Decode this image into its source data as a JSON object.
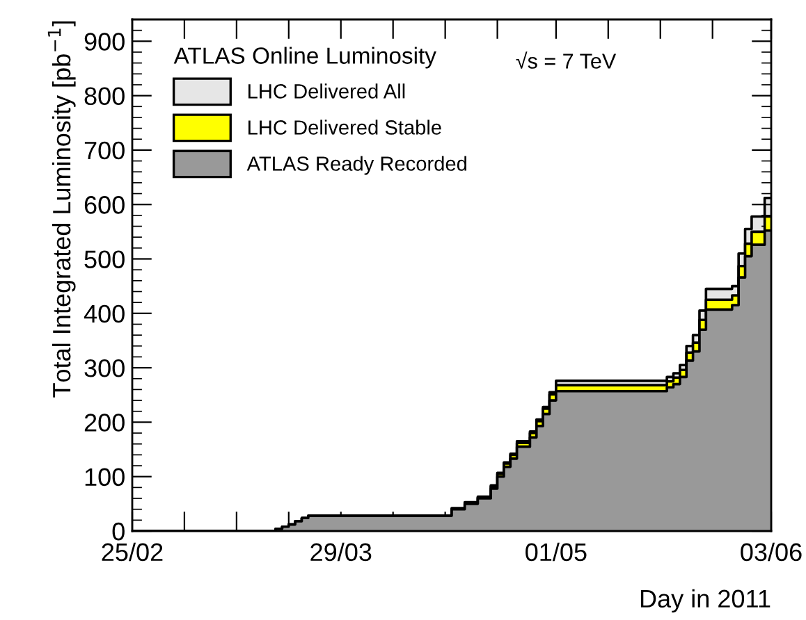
{
  "chart_data": {
    "type": "area",
    "xlabel": "Day in 2011",
    "ylabel": "Total Integrated Luminosity [pb$^{−1}$]",
    "legend_title": "ATLAS Online Luminosity",
    "annotations": [
      "√s = 7 TeV"
    ],
    "x": [
      "2011-02-25",
      "2011-03-18",
      "2011-03-19",
      "2011-03-19",
      "2011-03-20",
      "2011-03-20",
      "2011-03-21",
      "2011-03-21",
      "2011-03-22",
      "2011-03-22",
      "2011-03-23",
      "2011-03-23",
      "2011-03-24",
      "2011-03-24",
      "2011-04-15",
      "2011-04-15",
      "2011-04-17",
      "2011-04-17",
      "2011-04-19",
      "2011-04-19",
      "2011-04-21",
      "2011-04-21",
      "2011-04-22",
      "2011-04-22",
      "2011-04-23",
      "2011-04-23",
      "2011-04-24",
      "2011-04-24",
      "2011-04-25",
      "2011-04-25",
      "2011-04-27",
      "2011-04-27",
      "2011-04-28",
      "2011-04-28",
      "2011-04-29",
      "2011-04-29",
      "2011-04-30",
      "2011-04-30",
      "2011-05-01",
      "2011-05-01",
      "2011-05-18",
      "2011-05-18",
      "2011-05-19",
      "2011-05-19",
      "2011-05-20",
      "2011-05-20",
      "2011-05-21",
      "2011-05-21",
      "2011-05-22",
      "2011-05-22",
      "2011-05-23",
      "2011-05-23",
      "2011-05-24",
      "2011-05-24",
      "2011-05-28",
      "2011-05-28",
      "2011-05-29",
      "2011-05-29",
      "2011-05-30",
      "2011-05-30",
      "2011-05-31",
      "2011-05-31",
      "2011-06-02",
      "2011-06-02",
      "2011-06-03"
    ],
    "series": [
      {
        "name": "LHC Delivered All",
        "color": "#e6e6e6",
        "values": [
          0,
          0,
          0,
          4,
          4,
          8,
          8,
          12,
          12,
          18,
          18,
          24,
          24,
          28,
          28,
          42,
          42,
          53,
          53,
          63,
          63,
          84,
          84,
          107,
          107,
          126,
          126,
          142,
          142,
          165,
          165,
          183,
          183,
          205,
          205,
          228,
          228,
          255,
          255,
          276,
          276,
          283,
          283,
          290,
          290,
          305,
          305,
          340,
          340,
          360,
          360,
          405,
          405,
          445,
          445,
          450,
          450,
          510,
          510,
          555,
          555,
          578,
          578,
          612,
          612
        ]
      },
      {
        "name": "LHC Delivered Stable",
        "color": "#ffff00",
        "values": [
          0,
          0,
          0,
          4,
          4,
          8,
          8,
          12,
          12,
          18,
          18,
          24,
          24,
          28,
          28,
          41,
          41,
          52,
          52,
          62,
          62,
          82,
          82,
          105,
          105,
          124,
          124,
          140,
          140,
          162,
          162,
          180,
          180,
          202,
          202,
          225,
          225,
          251,
          251,
          268,
          268,
          275,
          275,
          282,
          282,
          296,
          296,
          328,
          328,
          346,
          346,
          388,
          388,
          425,
          425,
          433,
          433,
          487,
          487,
          528,
          528,
          550,
          550,
          578,
          578
        ]
      },
      {
        "name": "ATLAS Ready Recorded",
        "color": "#999999",
        "values": [
          0,
          0,
          0,
          4,
          4,
          8,
          8,
          12,
          12,
          18,
          18,
          24,
          24,
          28,
          28,
          40,
          40,
          50,
          50,
          60,
          60,
          78,
          78,
          100,
          100,
          118,
          118,
          133,
          133,
          155,
          155,
          172,
          172,
          193,
          193,
          215,
          215,
          240,
          240,
          257,
          257,
          264,
          264,
          270,
          270,
          283,
          283,
          313,
          313,
          330,
          330,
          370,
          370,
          407,
          407,
          415,
          415,
          466,
          466,
          505,
          505,
          526,
          526,
          552,
          552
        ]
      }
    ],
    "xlim": [
      "2011-02-25",
      "2011-06-03"
    ],
    "xticks": [
      {
        "value": "2011-02-25",
        "label": "25/02"
      },
      {
        "value": "2011-03-05",
        "label": null
      },
      {
        "value": "2011-03-13",
        "label": null
      },
      {
        "value": "2011-03-21",
        "label": null
      },
      {
        "value": "2011-03-29",
        "label": "29/03"
      },
      {
        "value": "2011-04-06",
        "label": null
      },
      {
        "value": "2011-04-14",
        "label": null
      },
      {
        "value": "2011-04-22",
        "label": null
      },
      {
        "value": "2011-05-01",
        "label": "01/05"
      },
      {
        "value": "2011-05-09",
        "label": null
      },
      {
        "value": "2011-05-17",
        "label": null
      },
      {
        "value": "2011-05-25",
        "label": null
      },
      {
        "value": "2011-06-03",
        "label": "03/06"
      }
    ],
    "ylim": [
      0,
      940
    ],
    "yticks": [
      0,
      100,
      200,
      300,
      400,
      500,
      600,
      700,
      800,
      900
    ],
    "grid": false,
    "legend": "top left"
  }
}
